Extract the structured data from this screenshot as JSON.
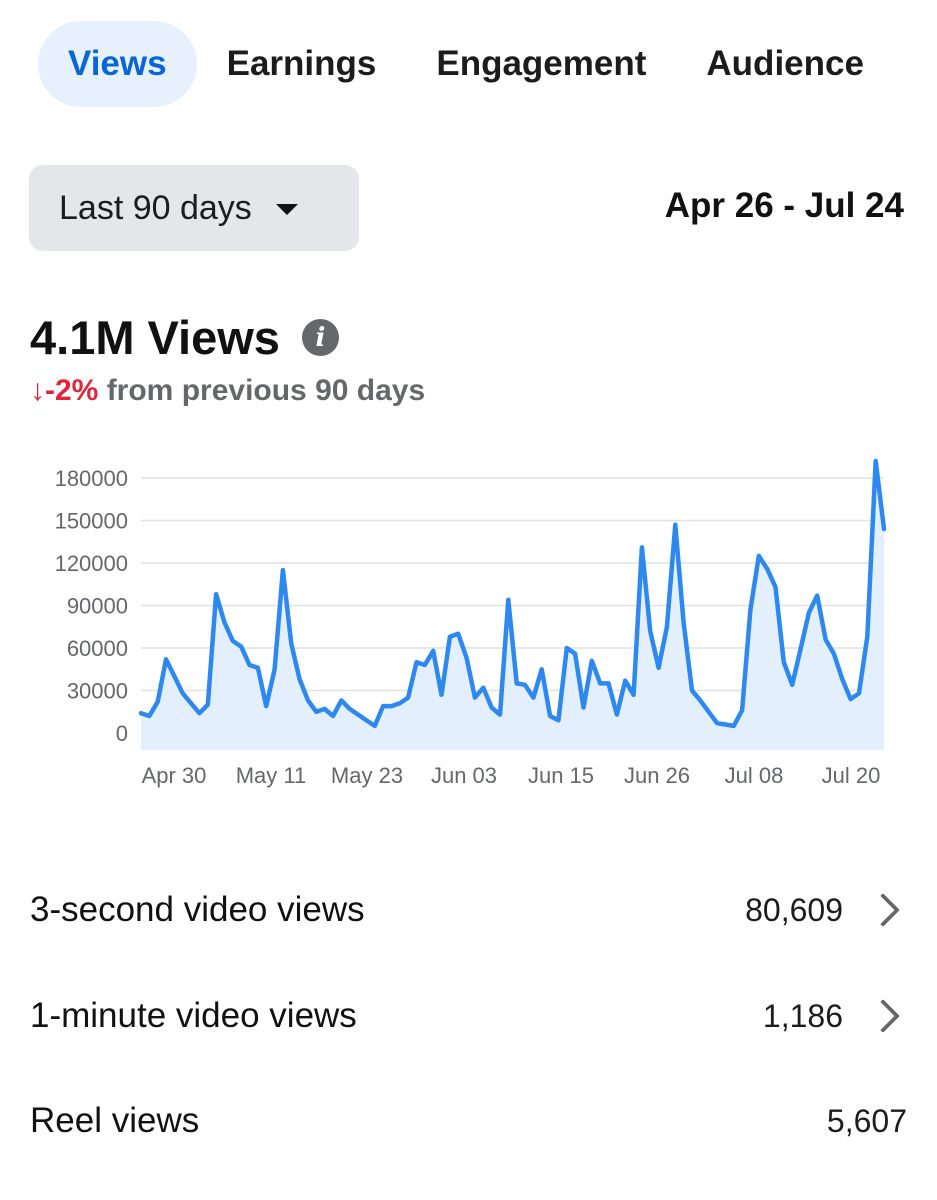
{
  "tabs": [
    {
      "label": "Views",
      "active": true
    },
    {
      "label": "Earnings",
      "active": false
    },
    {
      "label": "Engagement",
      "active": false
    },
    {
      "label": "Audience",
      "active": false
    }
  ],
  "date_filter": {
    "selected": "Last 90 days"
  },
  "date_range": "Apr 26 - Jul 24",
  "summary": {
    "total": "4.1M Views",
    "change_value": "↓-2%",
    "change_text": " from previous 90 days"
  },
  "colors": {
    "accent": "#0866d6",
    "line": "#2d88f0",
    "fill": "#e3effd",
    "negative": "#e0263c"
  },
  "chart_data": {
    "type": "line",
    "x_tick_labels": [
      "Apr 30",
      "May 11",
      "May 23",
      "Jun 03",
      "Jun 15",
      "Jun 26",
      "Jul 08",
      "Jul 20"
    ],
    "y_tick_labels": [
      "0",
      "30000",
      "60000",
      "90000",
      "120000",
      "150000",
      "180000"
    ],
    "ylim": [
      0,
      180000
    ],
    "grid": true,
    "series": [
      {
        "values": [
          14000,
          12000,
          22000,
          52000,
          40000,
          28000,
          21000,
          14000,
          20000,
          98000,
          78000,
          65000,
          61000,
          48000,
          46000,
          19000,
          45000,
          115000,
          63000,
          38000,
          23000,
          15000,
          17000,
          12000,
          23000,
          17000,
          13000,
          9000,
          5000,
          19000,
          19000,
          21000,
          25000,
          50000,
          48000,
          58000,
          27000,
          68000,
          70000,
          53000,
          25000,
          32000,
          18000,
          13000,
          94000,
          35000,
          34000,
          25000,
          45000,
          12000,
          9000,
          60000,
          56000,
          18000,
          51000,
          35000,
          35000,
          13000,
          37000,
          27000,
          131000,
          72000,
          46000,
          75000,
          147000,
          78000,
          30000,
          23000,
          15000,
          7000,
          6000,
          5000,
          16000,
          87000,
          125000,
          116000,
          103000,
          50000,
          34000,
          59000,
          85000,
          97000,
          66000,
          56000,
          38000,
          24000,
          28000,
          68000,
          192000,
          144000
        ]
      }
    ]
  },
  "metrics": [
    {
      "label": "3-second video views",
      "value": "80,609",
      "has_chevron": true
    },
    {
      "label": "1-minute video views",
      "value": "1,186",
      "has_chevron": true
    },
    {
      "label": "Reel views",
      "value": "5,607",
      "has_chevron": false
    }
  ]
}
